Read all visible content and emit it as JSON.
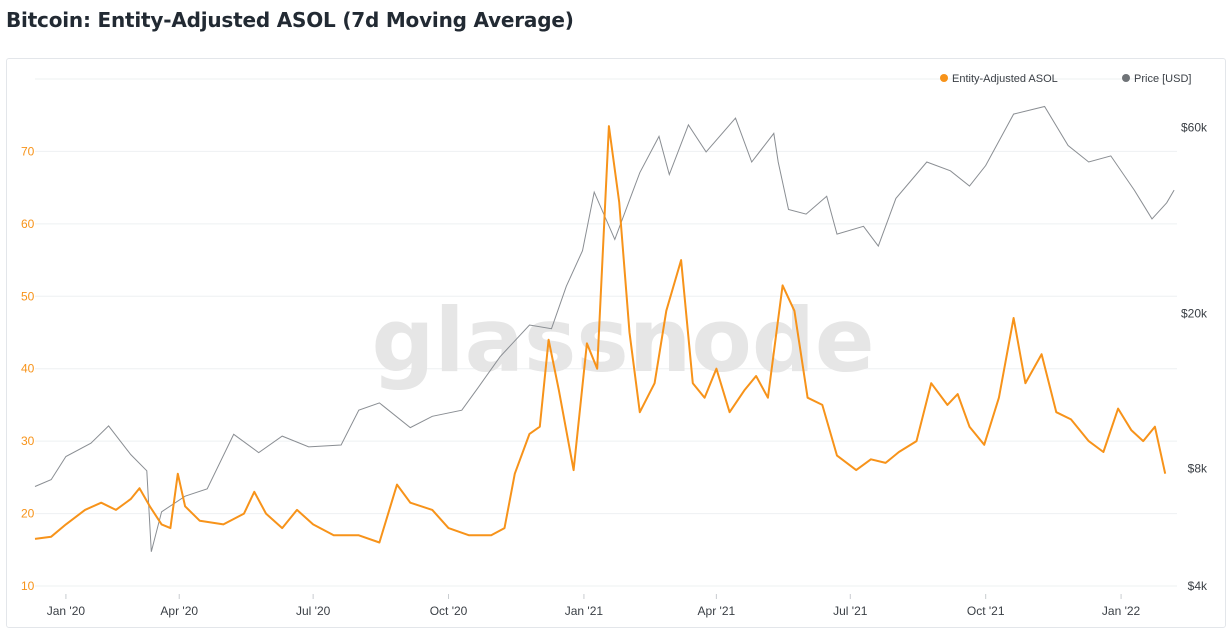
{
  "title": "Bitcoin: Entity-Adjusted ASOL (7d Moving Average)",
  "watermark": "glassnode",
  "chart_data": {
    "type": "line",
    "x_range": [
      "2019-12-25",
      "2022-02-08"
    ],
    "x_ticks": [
      {
        "date": "2020-01-15",
        "label": "Jan '20"
      },
      {
        "date": "2020-04-01",
        "label": "Apr '20"
      },
      {
        "date": "2020-07-01",
        "label": "Jul '20"
      },
      {
        "date": "2020-10-01",
        "label": "Oct '20"
      },
      {
        "date": "2021-01-01",
        "label": "Jan '21"
      },
      {
        "date": "2021-04-01",
        "label": "Apr '21"
      },
      {
        "date": "2021-07-01",
        "label": "Jul '21"
      },
      {
        "date": "2021-10-01",
        "label": "Oct '21"
      },
      {
        "date": "2022-01-01",
        "label": "Jan '22"
      }
    ],
    "y_left": {
      "min": 10,
      "max": 80,
      "ticks": [
        10,
        20,
        30,
        40,
        50,
        60,
        70
      ],
      "color": "#f7931a"
    },
    "y_right": {
      "scale": "log",
      "min": 4000,
      "max": 80000,
      "ticks": [
        4000,
        8000,
        20000,
        60000
      ],
      "tick_labels": [
        "$4k",
        "$8k",
        "$20k",
        "$60k"
      ]
    },
    "legend_position": "top-right",
    "grid": "horizontal",
    "series": [
      {
        "name": "Entity-Adjusted ASOL",
        "axis": "left",
        "color": "#f7931a",
        "points": [
          [
            "2019-12-25",
            16.5
          ],
          [
            "2020-01-05",
            16.8
          ],
          [
            "2020-01-15",
            18.5
          ],
          [
            "2020-01-28",
            20.5
          ],
          [
            "2020-02-08",
            21.5
          ],
          [
            "2020-02-18",
            20.5
          ],
          [
            "2020-02-28",
            22.0
          ],
          [
            "2020-03-05",
            23.5
          ],
          [
            "2020-03-12",
            21.0
          ],
          [
            "2020-03-20",
            18.5
          ],
          [
            "2020-03-26",
            18.0
          ],
          [
            "2020-03-31",
            25.5
          ],
          [
            "2020-04-05",
            21.0
          ],
          [
            "2020-04-15",
            19.0
          ],
          [
            "2020-05-01",
            18.5
          ],
          [
            "2020-05-15",
            20.0
          ],
          [
            "2020-05-22",
            23.0
          ],
          [
            "2020-05-30",
            20.0
          ],
          [
            "2020-06-10",
            18.0
          ],
          [
            "2020-06-20",
            20.5
          ],
          [
            "2020-07-01",
            18.5
          ],
          [
            "2020-07-15",
            17.0
          ],
          [
            "2020-08-01",
            17.0
          ],
          [
            "2020-08-15",
            16.0
          ],
          [
            "2020-08-27",
            24.0
          ],
          [
            "2020-09-05",
            21.5
          ],
          [
            "2020-09-20",
            20.5
          ],
          [
            "2020-10-01",
            18.0
          ],
          [
            "2020-10-15",
            17.0
          ],
          [
            "2020-10-30",
            17.0
          ],
          [
            "2020-11-08",
            18.0
          ],
          [
            "2020-11-15",
            25.5
          ],
          [
            "2020-11-25",
            31.0
          ],
          [
            "2020-12-02",
            32.0
          ],
          [
            "2020-12-08",
            44.0
          ],
          [
            "2020-12-15",
            37.0
          ],
          [
            "2020-12-25",
            26.0
          ],
          [
            "2021-01-03",
            43.5
          ],
          [
            "2021-01-10",
            40.0
          ],
          [
            "2021-01-18",
            73.5
          ],
          [
            "2021-01-25",
            63.0
          ],
          [
            "2021-02-01",
            45.0
          ],
          [
            "2021-02-08",
            34.0
          ],
          [
            "2021-02-18",
            38.0
          ],
          [
            "2021-02-26",
            48.0
          ],
          [
            "2021-03-08",
            55.0
          ],
          [
            "2021-03-16",
            38.0
          ],
          [
            "2021-03-24",
            36.0
          ],
          [
            "2021-04-01",
            40.0
          ],
          [
            "2021-04-10",
            34.0
          ],
          [
            "2021-04-20",
            37.0
          ],
          [
            "2021-04-28",
            39.0
          ],
          [
            "2021-05-06",
            36.0
          ],
          [
            "2021-05-16",
            51.5
          ],
          [
            "2021-05-24",
            48.0
          ],
          [
            "2021-06-02",
            36.0
          ],
          [
            "2021-06-12",
            35.0
          ],
          [
            "2021-06-22",
            28.0
          ],
          [
            "2021-07-05",
            26.0
          ],
          [
            "2021-07-15",
            27.5
          ],
          [
            "2021-07-25",
            27.0
          ],
          [
            "2021-08-03",
            28.5
          ],
          [
            "2021-08-15",
            30.0
          ],
          [
            "2021-08-25",
            38.0
          ],
          [
            "2021-09-05",
            35.0
          ],
          [
            "2021-09-12",
            36.5
          ],
          [
            "2021-09-20",
            32.0
          ],
          [
            "2021-09-30",
            29.5
          ],
          [
            "2021-10-10",
            36.0
          ],
          [
            "2021-10-20",
            47.0
          ],
          [
            "2021-10-28",
            38.0
          ],
          [
            "2021-11-08",
            42.0
          ],
          [
            "2021-11-18",
            34.0
          ],
          [
            "2021-11-28",
            33.0
          ],
          [
            "2021-12-10",
            30.0
          ],
          [
            "2021-12-20",
            28.5
          ],
          [
            "2021-12-30",
            34.5
          ],
          [
            "2022-01-08",
            31.5
          ],
          [
            "2022-01-16",
            30.0
          ],
          [
            "2022-01-24",
            32.0
          ],
          [
            "2022-01-31",
            25.5
          ]
        ]
      },
      {
        "name": "Price [USD]",
        "axis": "right",
        "color": "#8a8e93",
        "points": [
          [
            "2019-12-25",
            7200
          ],
          [
            "2020-01-05",
            7500
          ],
          [
            "2020-01-15",
            8600
          ],
          [
            "2020-02-01",
            9300
          ],
          [
            "2020-02-13",
            10300
          ],
          [
            "2020-02-28",
            8700
          ],
          [
            "2020-03-10",
            7900
          ],
          [
            "2020-03-13",
            4900
          ],
          [
            "2020-03-20",
            6200
          ],
          [
            "2020-04-05",
            6800
          ],
          [
            "2020-04-20",
            7100
          ],
          [
            "2020-05-08",
            9800
          ],
          [
            "2020-05-25",
            8800
          ],
          [
            "2020-06-10",
            9700
          ],
          [
            "2020-06-28",
            9100
          ],
          [
            "2020-07-20",
            9200
          ],
          [
            "2020-08-01",
            11300
          ],
          [
            "2020-08-15",
            11800
          ],
          [
            "2020-09-05",
            10200
          ],
          [
            "2020-09-20",
            10900
          ],
          [
            "2020-10-10",
            11300
          ],
          [
            "2020-10-21",
            12900
          ],
          [
            "2020-11-05",
            15500
          ],
          [
            "2020-11-25",
            18700
          ],
          [
            "2020-12-10",
            18300
          ],
          [
            "2020-12-20",
            23500
          ],
          [
            "2020-12-31",
            29000
          ],
          [
            "2021-01-08",
            41000
          ],
          [
            "2021-01-22",
            31000
          ],
          [
            "2021-02-08",
            46000
          ],
          [
            "2021-02-21",
            57000
          ],
          [
            "2021-02-28",
            45500
          ],
          [
            "2021-03-13",
            61000
          ],
          [
            "2021-03-25",
            52000
          ],
          [
            "2021-04-14",
            63500
          ],
          [
            "2021-04-25",
            49000
          ],
          [
            "2021-05-10",
            58000
          ],
          [
            "2021-05-13",
            49000
          ],
          [
            "2021-05-20",
            37000
          ],
          [
            "2021-06-01",
            36000
          ],
          [
            "2021-06-15",
            40000
          ],
          [
            "2021-06-22",
            32000
          ],
          [
            "2021-07-10",
            33500
          ],
          [
            "2021-07-20",
            29800
          ],
          [
            "2021-08-01",
            39500
          ],
          [
            "2021-08-22",
            49000
          ],
          [
            "2021-09-07",
            46500
          ],
          [
            "2021-09-20",
            42500
          ],
          [
            "2021-10-01",
            48000
          ],
          [
            "2021-10-20",
            65000
          ],
          [
            "2021-11-10",
            68000
          ],
          [
            "2021-11-26",
            54000
          ],
          [
            "2021-12-10",
            49000
          ],
          [
            "2021-12-25",
            50800
          ],
          [
            "2022-01-10",
            41500
          ],
          [
            "2022-01-22",
            35000
          ],
          [
            "2022-02-01",
            38500
          ],
          [
            "2022-02-06",
            41500
          ]
        ]
      }
    ]
  }
}
